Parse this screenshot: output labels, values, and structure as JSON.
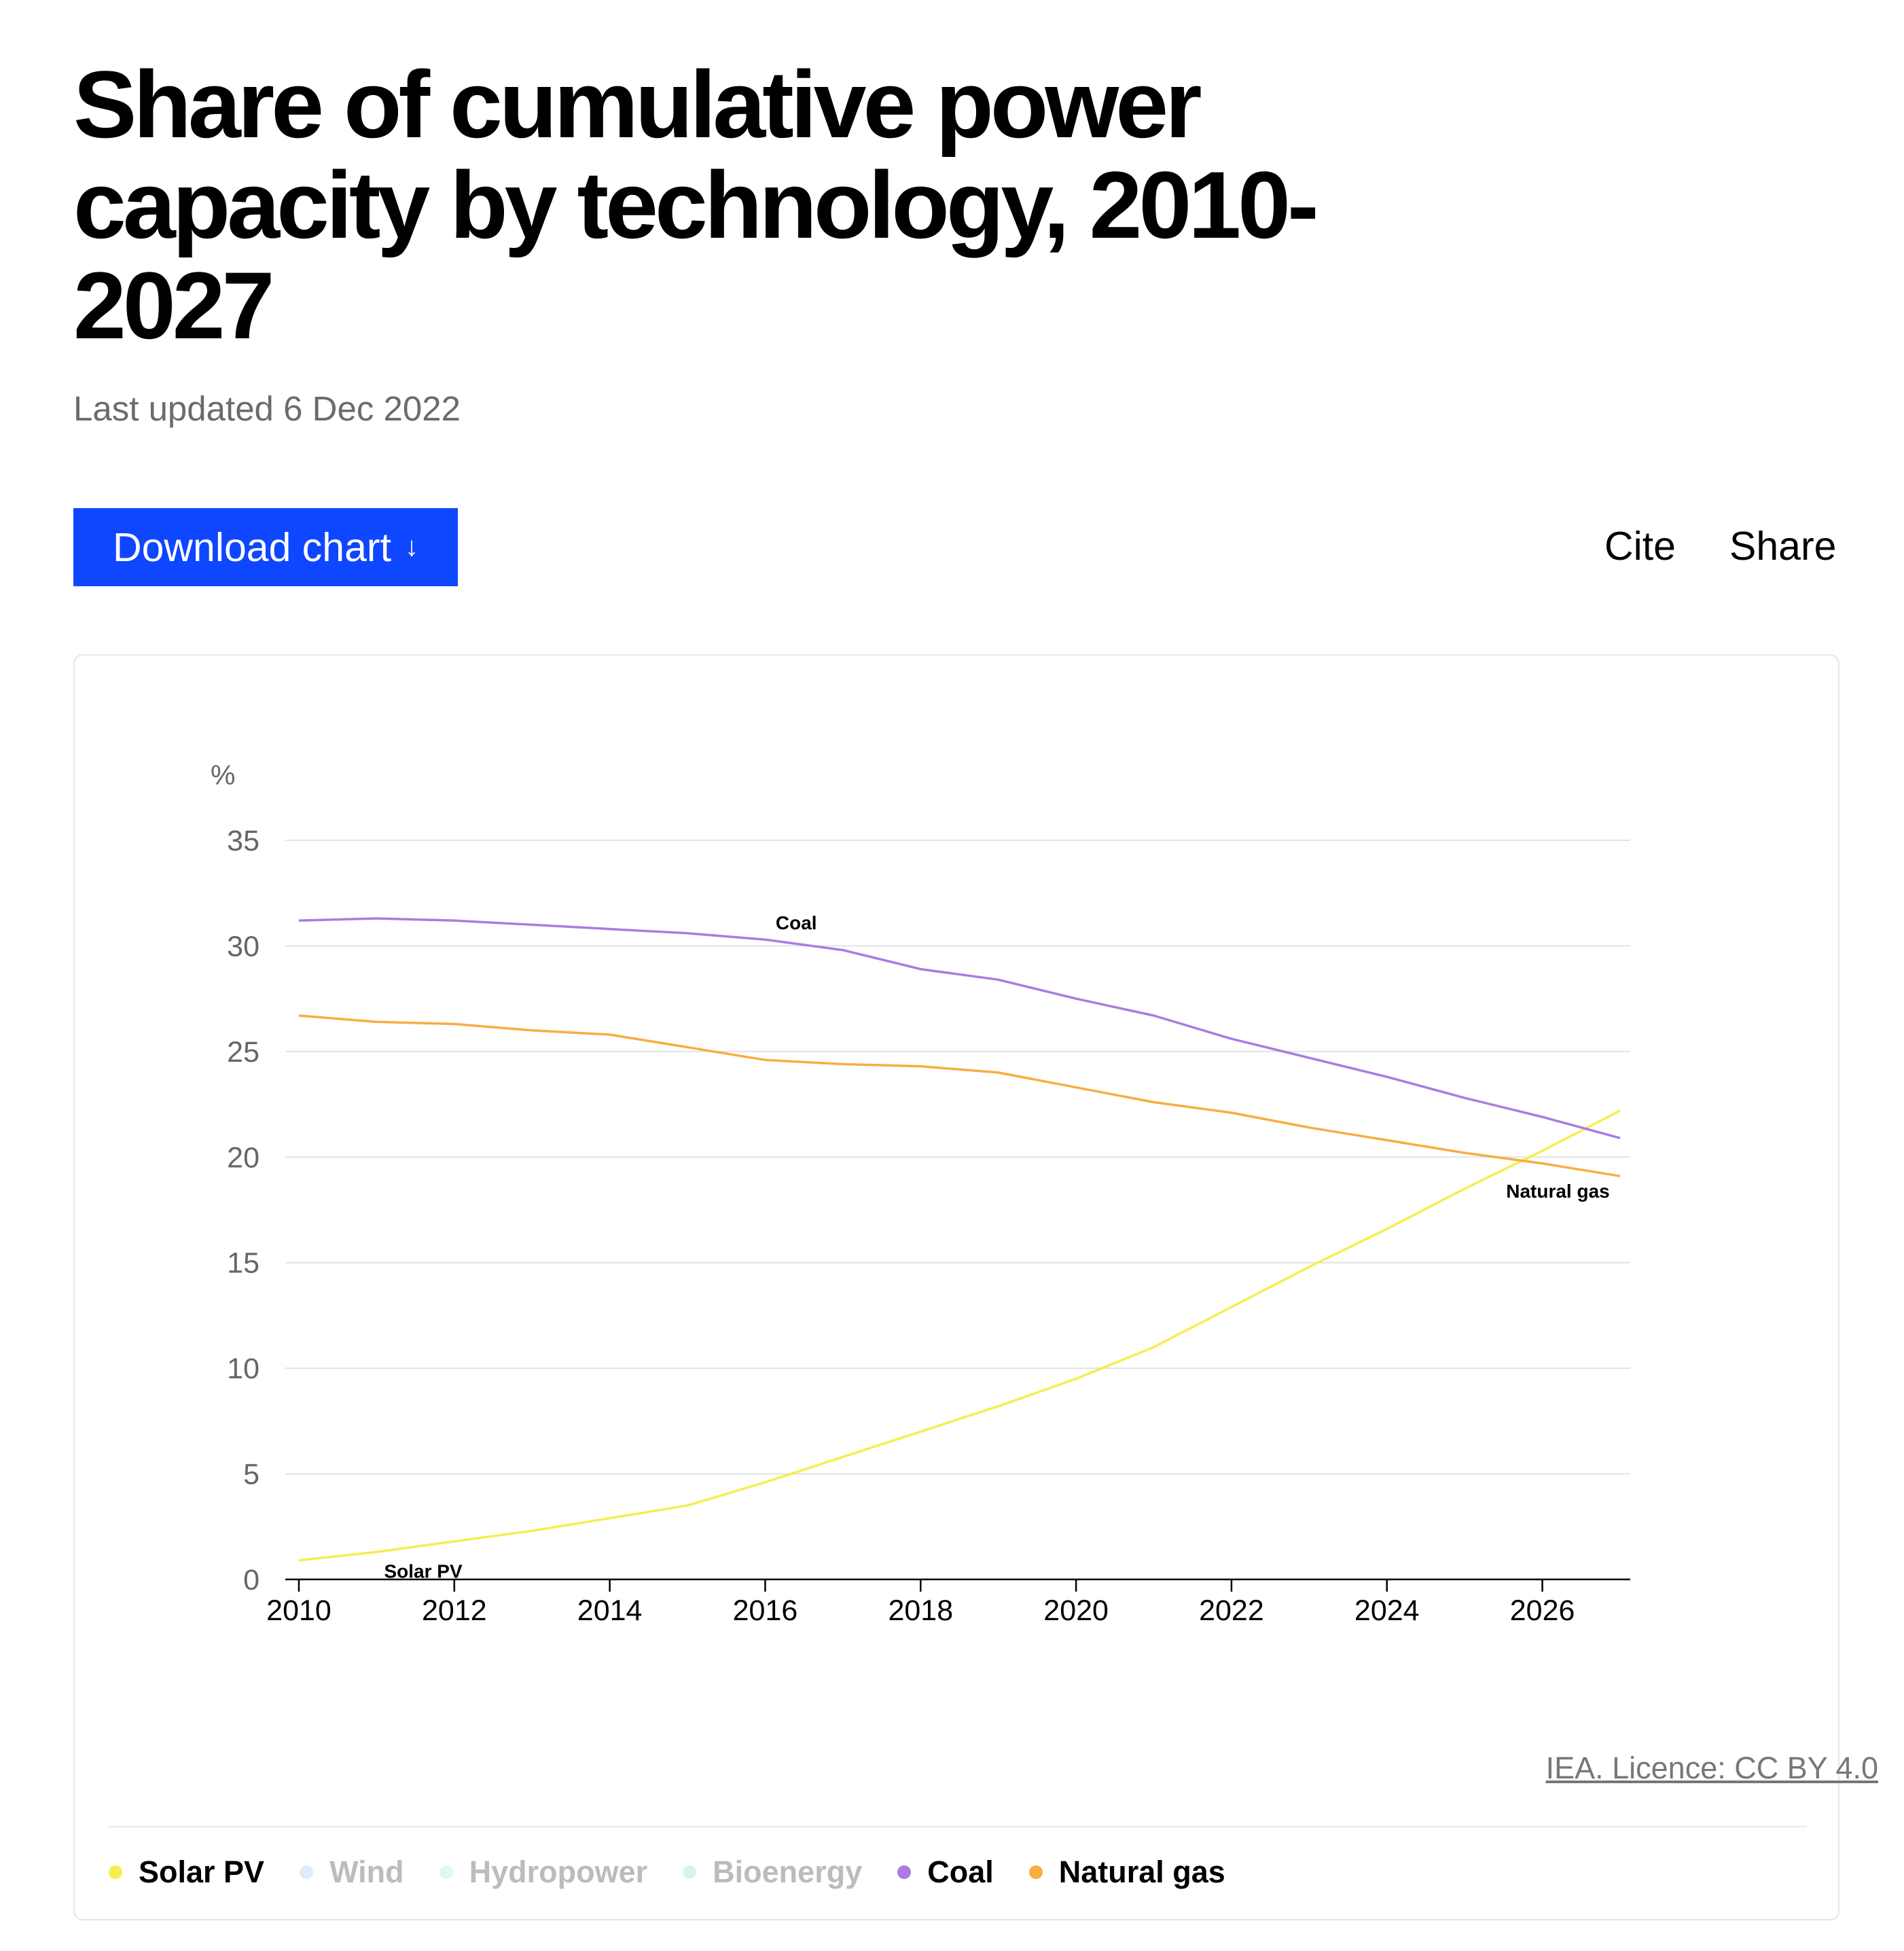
{
  "page": {
    "title": "Share of cumulative power capacity by technology, 2010-2027",
    "last_updated": "Last updated 6 Dec 2022",
    "download_label": "Download chart",
    "download_arrow": "↓",
    "cite_label": "Cite",
    "share_label": "Share",
    "licence": "IEA. Licence: CC BY 4.0"
  },
  "legend": [
    {
      "name": "Solar PV",
      "color": "#f6ee50",
      "active": true
    },
    {
      "name": "Wind",
      "color": "#b9d3f2",
      "active": false
    },
    {
      "name": "Hydropower",
      "color": "#bdf2d6",
      "active": false
    },
    {
      "name": "Bioenergy",
      "color": "#a9e2df",
      "active": false
    },
    {
      "name": "Coal",
      "color": "#a87ddf",
      "active": true
    },
    {
      "name": "Natural gas",
      "color": "#f8ad41",
      "active": true
    }
  ],
  "chart_data": {
    "type": "line",
    "title": "Share of cumulative power capacity by technology, 2010-2027",
    "ylabel": "%",
    "xlabel": "",
    "ylim": [
      0,
      35
    ],
    "xlim": [
      2010,
      2027
    ],
    "y_ticks": [
      0,
      5,
      10,
      15,
      20,
      25,
      30,
      35
    ],
    "x_ticks": [
      2010,
      2012,
      2014,
      2016,
      2018,
      2020,
      2022,
      2024,
      2026
    ],
    "grid": true,
    "x": [
      2010,
      2011,
      2012,
      2013,
      2014,
      2015,
      2016,
      2017,
      2018,
      2019,
      2020,
      2021,
      2022,
      2023,
      2024,
      2025,
      2026,
      2027
    ],
    "series": [
      {
        "name": "Solar PV",
        "color": "#f6ee50",
        "label_text": "Solar PV",
        "values": [
          0.9,
          1.3,
          1.8,
          2.3,
          2.9,
          3.5,
          4.6,
          5.8,
          7.0,
          8.2,
          9.5,
          11.0,
          12.9,
          14.8,
          16.6,
          18.5,
          20.3,
          22.2
        ]
      },
      {
        "name": "Coal",
        "color": "#a87ddf",
        "label_text": "Coal",
        "values": [
          31.2,
          31.3,
          31.2,
          31.0,
          30.8,
          30.6,
          30.3,
          29.8,
          28.9,
          28.4,
          27.5,
          26.7,
          25.6,
          24.7,
          23.8,
          22.8,
          21.9,
          20.9
        ]
      },
      {
        "name": "Natural gas",
        "color": "#f8ad41",
        "label_text": "Natural gas",
        "values": [
          26.7,
          26.4,
          26.3,
          26.0,
          25.8,
          25.2,
          24.6,
          24.4,
          24.3,
          24.0,
          23.3,
          22.6,
          22.1,
          21.4,
          20.8,
          20.2,
          19.7,
          19.1
        ]
      }
    ]
  }
}
